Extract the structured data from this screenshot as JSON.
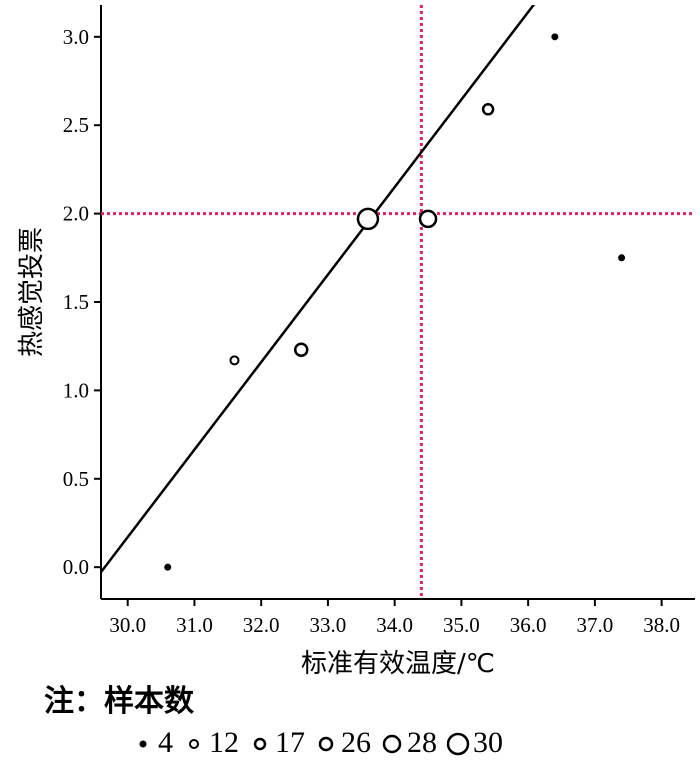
{
  "chart_data": {
    "type": "scatter",
    "xlabel": "标准有效温度/℃",
    "ylabel": "热感觉投票",
    "xlim": [
      29.6,
      38.5
    ],
    "ylim": [
      -0.18,
      3.18
    ],
    "x_ticks": [
      "30.0",
      "31.0",
      "32.0",
      "33.0",
      "34.0",
      "35.0",
      "36.0",
      "37.0",
      "38.0"
    ],
    "y_ticks": [
      "0.0",
      "0.5",
      "1.0",
      "1.5",
      "2.0",
      "2.5",
      "3.0"
    ],
    "points": [
      {
        "x": 30.6,
        "y": 0.0,
        "n": 4
      },
      {
        "x": 31.6,
        "y": 1.17,
        "n": 12
      },
      {
        "x": 32.6,
        "y": 1.23,
        "n": 26
      },
      {
        "x": 33.6,
        "y": 1.97,
        "n": 30
      },
      {
        "x": 34.5,
        "y": 1.97,
        "n": 28
      },
      {
        "x": 35.4,
        "y": 2.59,
        "n": 17
      },
      {
        "x": 36.4,
        "y": 3.0,
        "n": 4
      },
      {
        "x": 37.4,
        "y": 1.75,
        "n": 4
      }
    ],
    "fit_line": {
      "slope": 0.495,
      "intercept": -14.68
    },
    "reference_lines": {
      "x": 34.4,
      "y": 2.0,
      "color": "#e0245e"
    },
    "sample_size_legend": [
      4,
      12,
      17,
      26,
      28,
      30
    ]
  },
  "note": {
    "title": "注：样本数",
    "items": [
      "4",
      "12",
      "17",
      "26",
      "28",
      "30"
    ]
  }
}
